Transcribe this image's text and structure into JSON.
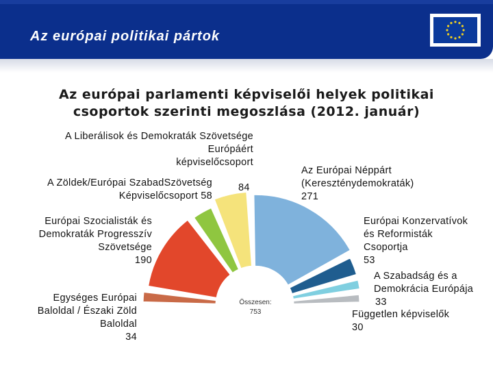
{
  "header": {
    "title": "Az európai politikai pártok"
  },
  "chart_data": {
    "type": "pie",
    "variant": "hemicycle",
    "title": "Az európai parlamenti képviselői helyek politikai csoportok szerinti megoszlása (2012. január)",
    "total_label": "Összesen:",
    "total": "753",
    "slices": [
      {
        "label": "Egységes Európai Baloldal / Északi Zöld Baloldal",
        "value": 34,
        "color": "#c96a47"
      },
      {
        "label": "Európai Szocialisták és Demokraták Progresszív Szövetsége",
        "value": 190,
        "color": "#e2472b"
      },
      {
        "label": "A Zöldek/Európai Szabad Szövetség Képviselőcsoport",
        "value": 58,
        "color": "#8fc640"
      },
      {
        "label": "A Liberálisok és Demokraták Szövetsége Európáért képviselőcsoport",
        "value": 84,
        "color": "#f5e37b"
      },
      {
        "label": "Az Európai Néppárt (Kereszténydemokraták)",
        "value": 271,
        "color": "#7fb2dc"
      },
      {
        "label": "Európai Konzervatívok és Reformisták Csoportja",
        "value": 53,
        "color": "#1f5d8f"
      },
      {
        "label": "A Szabadság és a Demokrácia Európája",
        "value": 33,
        "color": "#7fcfe0"
      },
      {
        "label": "Független képviselők",
        "value": 30,
        "color": "#b8bcc0"
      }
    ]
  },
  "labels": {
    "liberal": {
      "l1": "A Liberálisok és Demokraták Szövetsége",
      "l2": "Európáért",
      "l3": "képviselőcsoport",
      "value": "84"
    },
    "greens": {
      "l1": "A Zöldek/Európai Szabad",
      "l1b": "Szövetség",
      "l2": "Képviselőcsoport 58"
    },
    "epp": {
      "l1": "Az Európai Néppárt",
      "l2": "(Kereszténydemokraták)",
      "value": "271"
    },
    "socialists": {
      "l1": "Európai Szocialisták és",
      "l2": "Demokraták Progresszív",
      "l3": "Szövetsége",
      "value": "190"
    },
    "ecr": {
      "l1": "Európai Konzervatívok",
      "l2": "és Reformisták",
      "l3": "Csoportja",
      "value": "53"
    },
    "efd": {
      "l1": "A Szabadság és a",
      "l2": "Demokrácia Európája",
      "value": "33"
    },
    "left": {
      "l1": "Egységes Európai",
      "l2": "Baloldal / Északi Zöld",
      "l3": "Baloldal",
      "value": "34"
    },
    "independent": {
      "l1": "Független képviselők",
      "value": "30"
    }
  }
}
